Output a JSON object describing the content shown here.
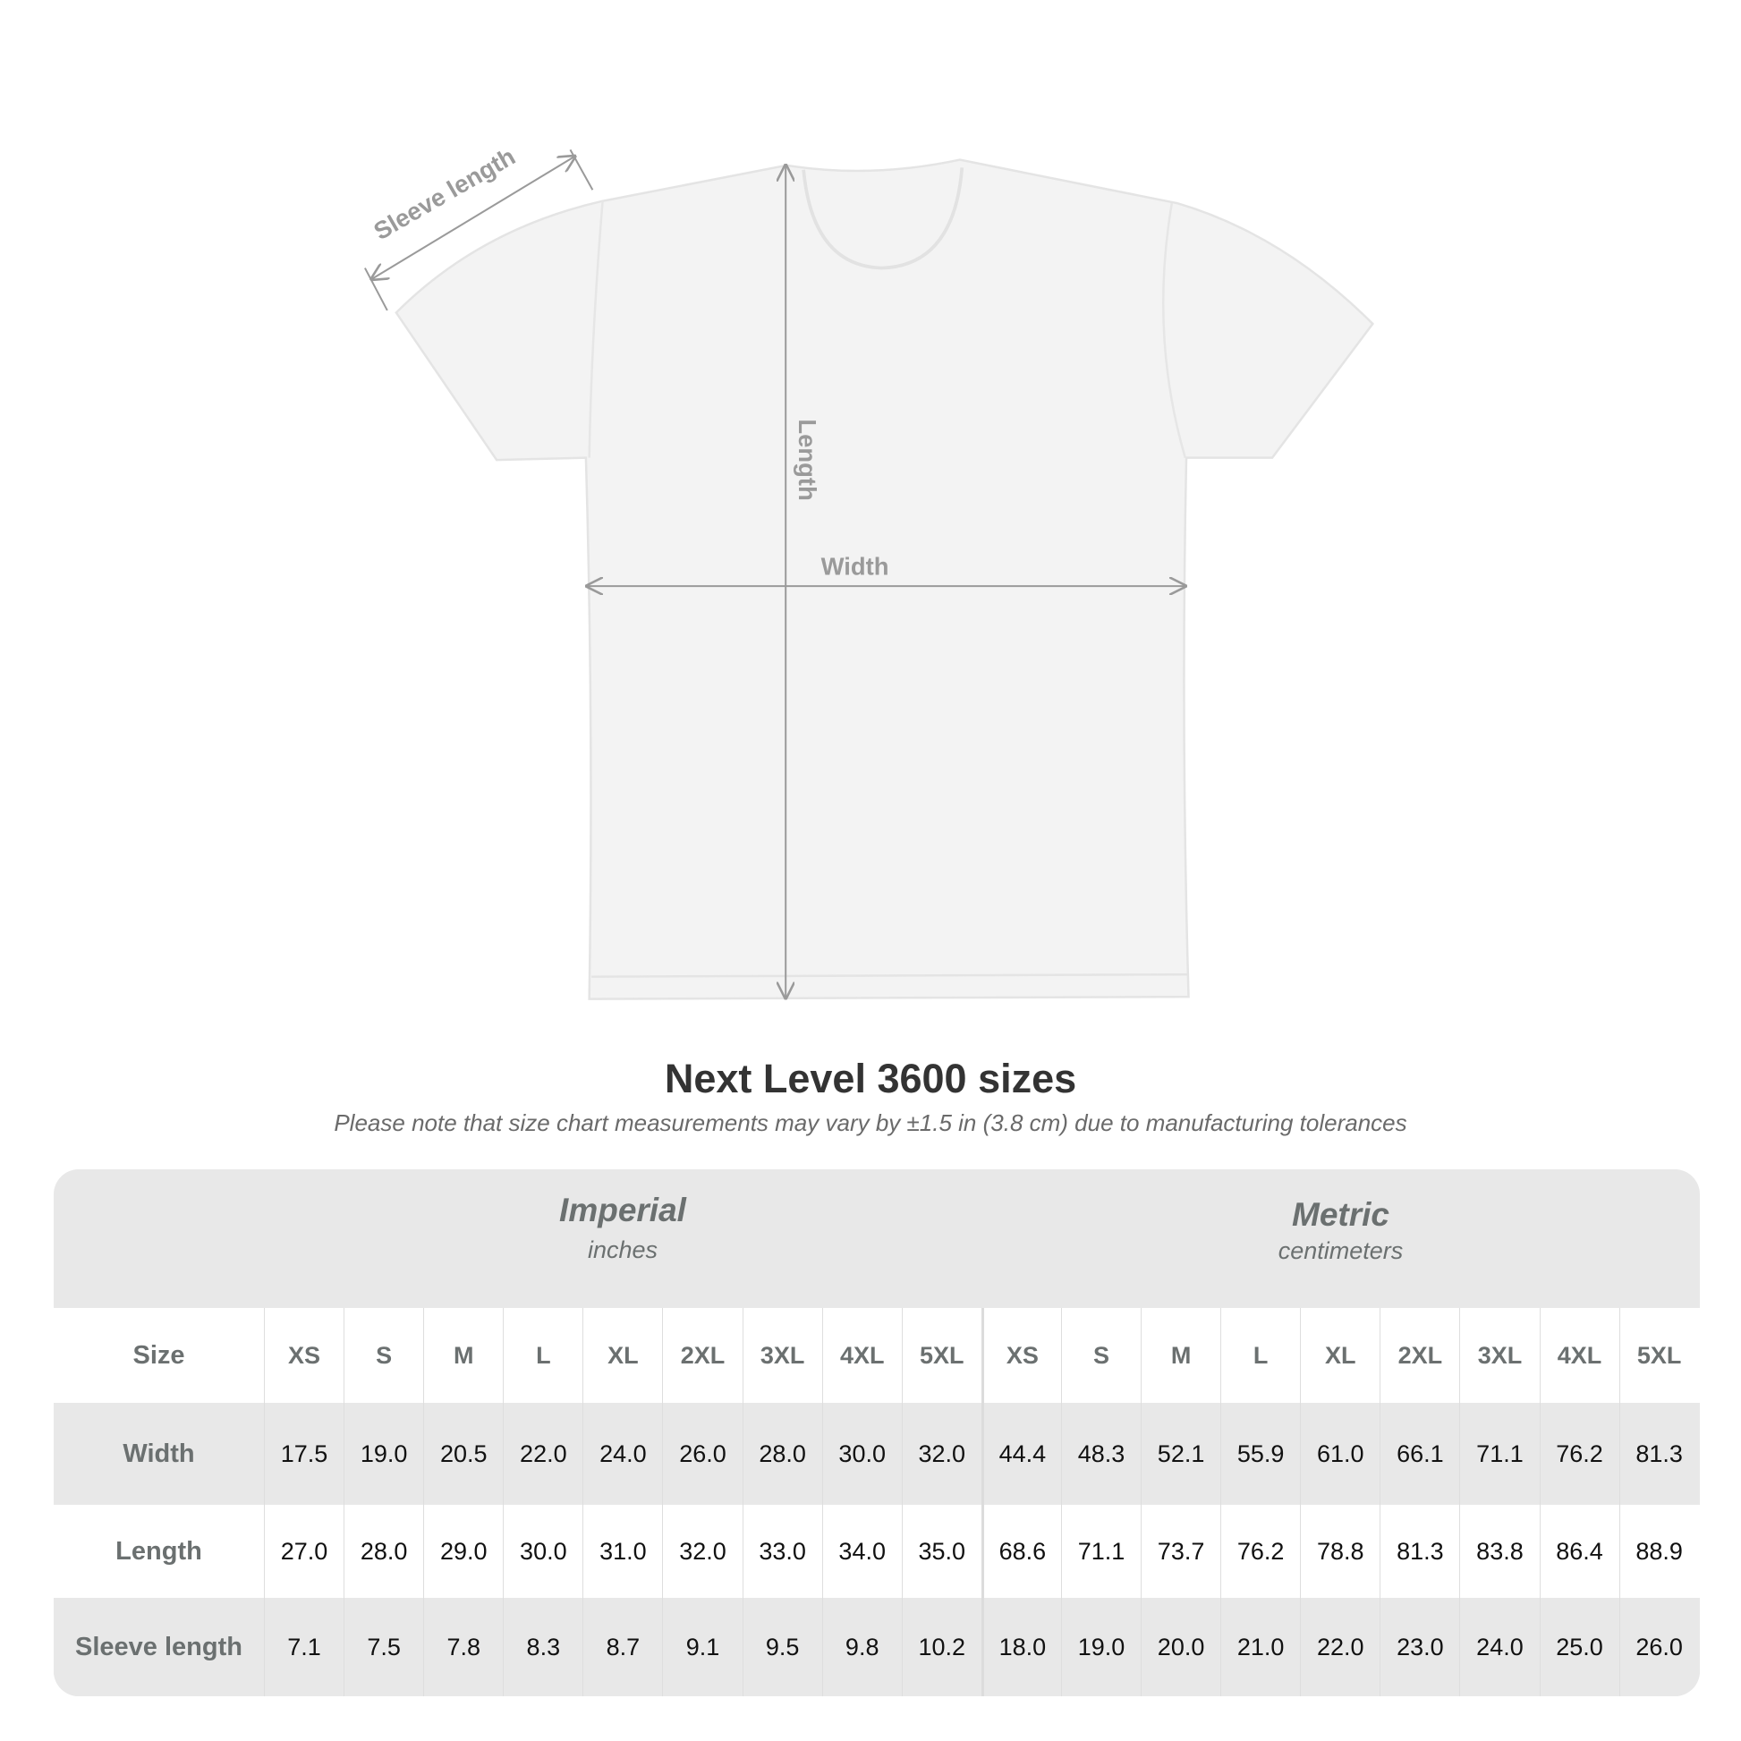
{
  "diagram": {
    "sleeve_label": "Sleeve length",
    "length_label": "Length",
    "width_label": "Width",
    "arrow_color": "#9a9a9a",
    "shirt_color": "#f3f3f3"
  },
  "title": "Next Level 3600 sizes",
  "note": "Please note that size chart measurements may vary by ±1.5 in (3.8 cm) due to manufacturing tolerances",
  "table": {
    "imperial": {
      "label": "Imperial",
      "unit": "inches"
    },
    "metric": {
      "label": "Metric",
      "unit": "centimeters"
    },
    "size_label": "Size",
    "sizes": [
      "XS",
      "S",
      "M",
      "L",
      "XL",
      "2XL",
      "3XL",
      "4XL",
      "5XL"
    ],
    "rows": [
      {
        "label": "Width",
        "imperial": [
          "17.5",
          "19.0",
          "20.5",
          "22.0",
          "24.0",
          "26.0",
          "28.0",
          "30.0",
          "32.0"
        ],
        "metric": [
          "44.4",
          "48.3",
          "52.1",
          "55.9",
          "61.0",
          "66.1",
          "71.1",
          "76.2",
          "81.3"
        ]
      },
      {
        "label": "Length",
        "imperial": [
          "27.0",
          "28.0",
          "29.0",
          "30.0",
          "31.0",
          "32.0",
          "33.0",
          "34.0",
          "35.0"
        ],
        "metric": [
          "68.6",
          "71.1",
          "73.7",
          "76.2",
          "78.8",
          "81.3",
          "83.8",
          "86.4",
          "88.9"
        ]
      },
      {
        "label": "Sleeve length",
        "imperial": [
          "7.1",
          "7.5",
          "7.8",
          "8.3",
          "8.7",
          "9.1",
          "9.5",
          "9.8",
          "10.2"
        ],
        "metric": [
          "18.0",
          "19.0",
          "20.0",
          "21.0",
          "22.0",
          "23.0",
          "24.0",
          "25.0",
          "26.0"
        ]
      }
    ]
  }
}
